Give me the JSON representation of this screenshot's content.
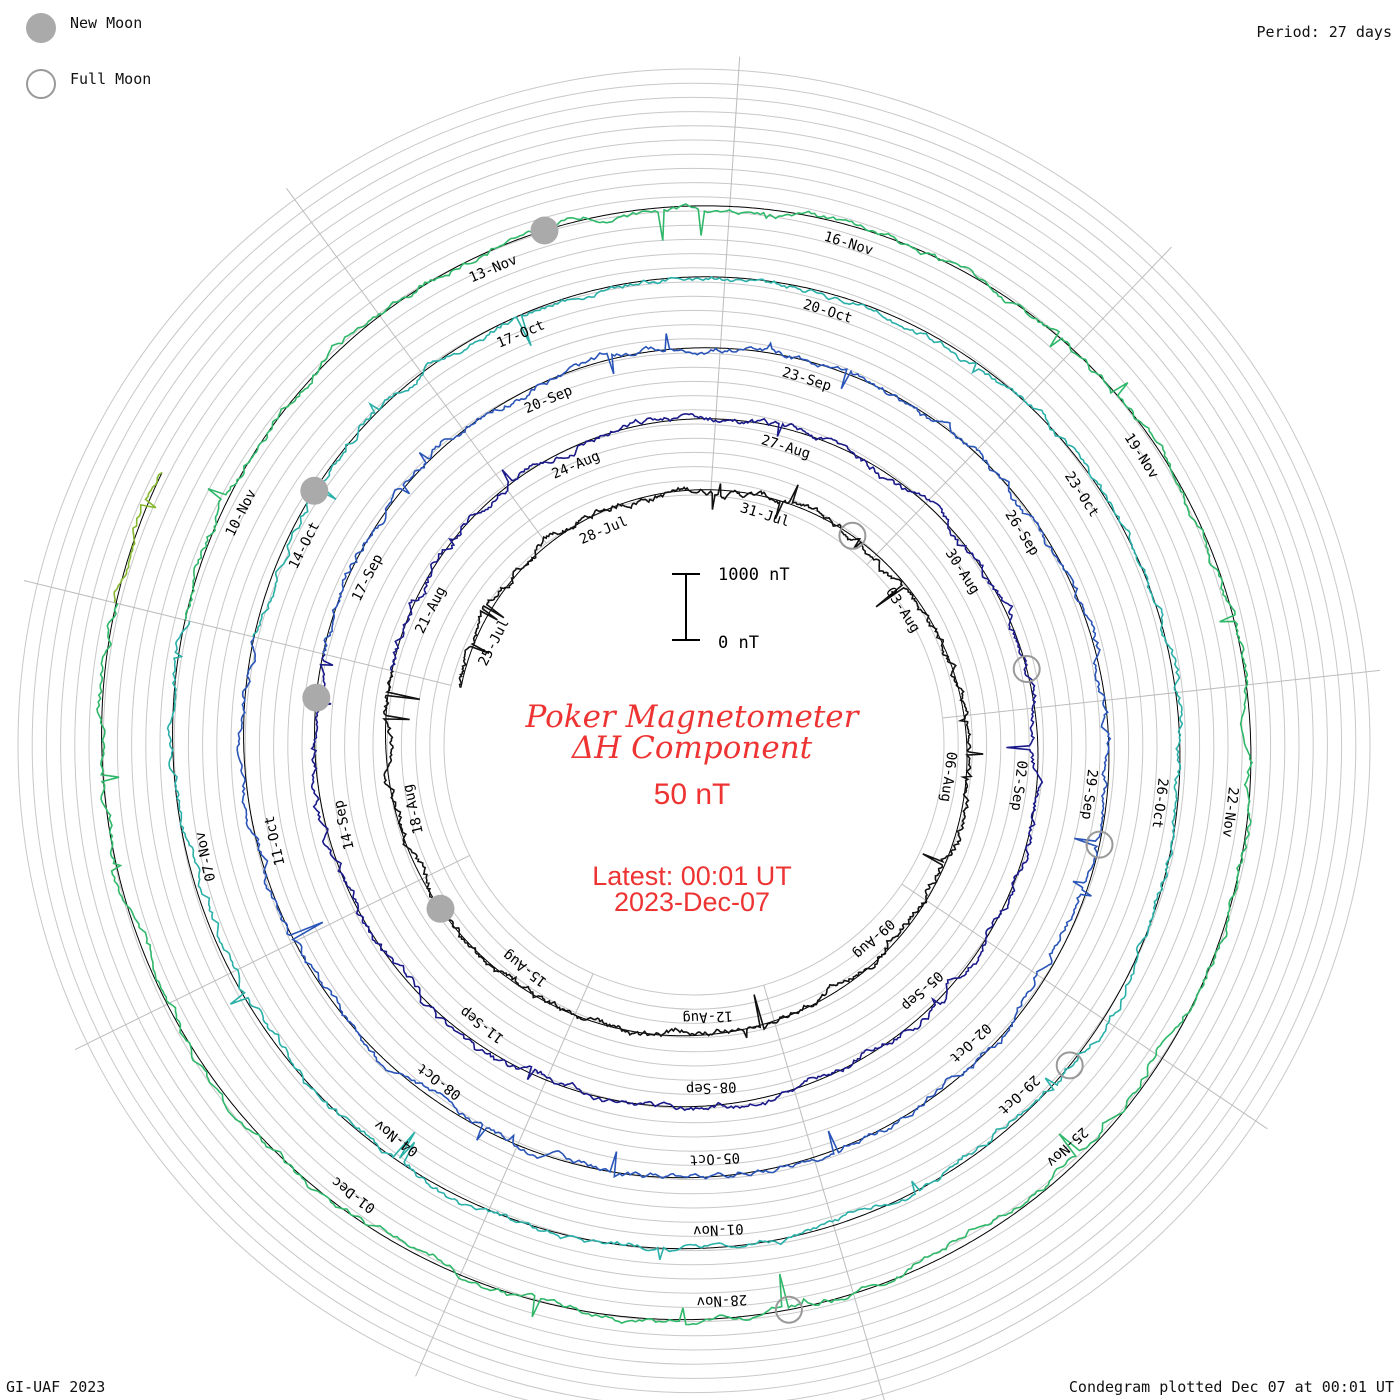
{
  "legend": {
    "new_moon_label": "New Moon",
    "full_moon_label": "Full Moon",
    "new_moon_color": "#aaaaaa",
    "full_moon_color": "#999999"
  },
  "header": {
    "period": "Period: 27 days"
  },
  "center": {
    "title_line1": "Poker Magnetometer",
    "title_line2": "ΔH Component",
    "scale_unit": "50 nT",
    "latest": "Latest: 00:01 UT",
    "date": "2023-Dec-07",
    "text_color": "#ee3333",
    "scale_bar_top": "1000 nT",
    "scale_bar_bottom": "0 nT"
  },
  "footer": {
    "left": "GI-UAF 2023",
    "right": "Condegram plotted Dec 07 at 00:01 UT"
  },
  "chart_data": {
    "type": "line",
    "title": "Poker Magnetometer ΔH Component",
    "period_days": 27,
    "start_date": "2023-07-24",
    "end_date": "2023-12-07",
    "series": [
      {
        "color": "#111111",
        "revolution": 1
      },
      {
        "color": "#1a1a8a",
        "revolution": 2
      },
      {
        "color": "#2a55b8",
        "revolution": 3
      },
      {
        "color": "#2ab0a8",
        "revolution": 4
      },
      {
        "color": "#2fb86a",
        "revolution": 5
      },
      {
        "color": "#86b830",
        "revolution": 6
      },
      {
        "color": "#c9a418",
        "revolution": 7
      },
      {
        "color": "#cf6010",
        "revolution": 8
      },
      {
        "color": "#b00e0e",
        "revolution": 9
      }
    ],
    "date_labels": [
      "25-Jul",
      "28-Jul",
      "31-Jul",
      "03-Aug",
      "06-Aug",
      "09-Aug",
      "12-Aug",
      "15-Aug",
      "18-Aug",
      "21-Aug",
      "24-Aug",
      "27-Aug",
      "30-Aug",
      "02-Sep",
      "05-Sep",
      "08-Sep",
      "11-Sep",
      "14-Sep",
      "17-Sep",
      "20-Sep",
      "23-Sep",
      "26-Sep",
      "29-Sep",
      "02-Oct",
      "05-Oct",
      "08-Oct",
      "11-Oct",
      "14-Oct",
      "17-Oct",
      "20-Oct",
      "23-Oct",
      "26-Oct",
      "29-Oct",
      "01-Nov",
      "04-Nov",
      "07-Nov",
      "10-Nov",
      "13-Nov",
      "16-Nov",
      "19-Nov",
      "22-Nov",
      "25-Nov",
      "28-Nov",
      "01-Dec"
    ],
    "new_moons": [
      "2023-08-16",
      "2023-09-15",
      "2023-10-14",
      "2023-11-13"
    ],
    "full_moons": [
      "2023-08-01",
      "2023-08-31",
      "2023-09-29",
      "2023-10-28",
      "2023-11-27"
    ]
  }
}
